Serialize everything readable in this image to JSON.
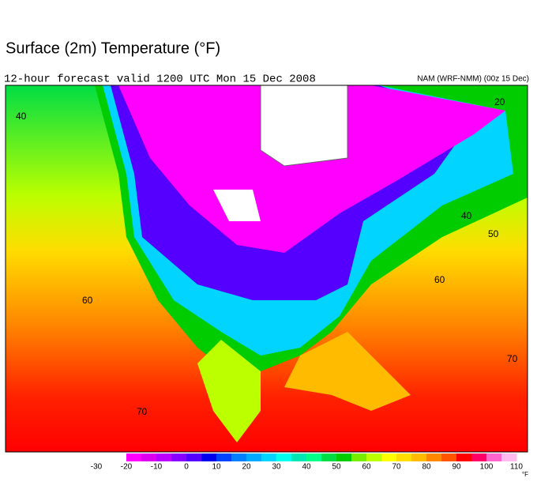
{
  "header": {
    "title": "Surface (2m) Temperature (°F)",
    "subtitle": "12-hour forecast valid 1200 UTC Mon 15 Dec 2008",
    "model": "NAM (WRF-NMM) (00z 15 Dec)"
  },
  "map": {
    "contour_labels": [
      40,
      60,
      70,
      20,
      40,
      50,
      60,
      70
    ]
  },
  "legend": {
    "ticks": [
      -30,
      -20,
      -10,
      0,
      10,
      20,
      30,
      40,
      50,
      60,
      70,
      80,
      90,
      100,
      110
    ],
    "colors": [
      "#ff00ff",
      "#dd00ee",
      "#bb00ff",
      "#8800ff",
      "#5500ff",
      "#0000ee",
      "#0044ff",
      "#0080ff",
      "#00aaff",
      "#00d4ff",
      "#00ffee",
      "#00e6b4",
      "#00ff88",
      "#00dd44",
      "#00cc00",
      "#77ee00",
      "#bbff00",
      "#ffff00",
      "#ffdd00",
      "#ffbb00",
      "#ff8800",
      "#ff5500",
      "#ff0000",
      "#ff0066",
      "#ff66cc",
      "#ffbbee"
    ],
    "unit": "°F"
  }
}
